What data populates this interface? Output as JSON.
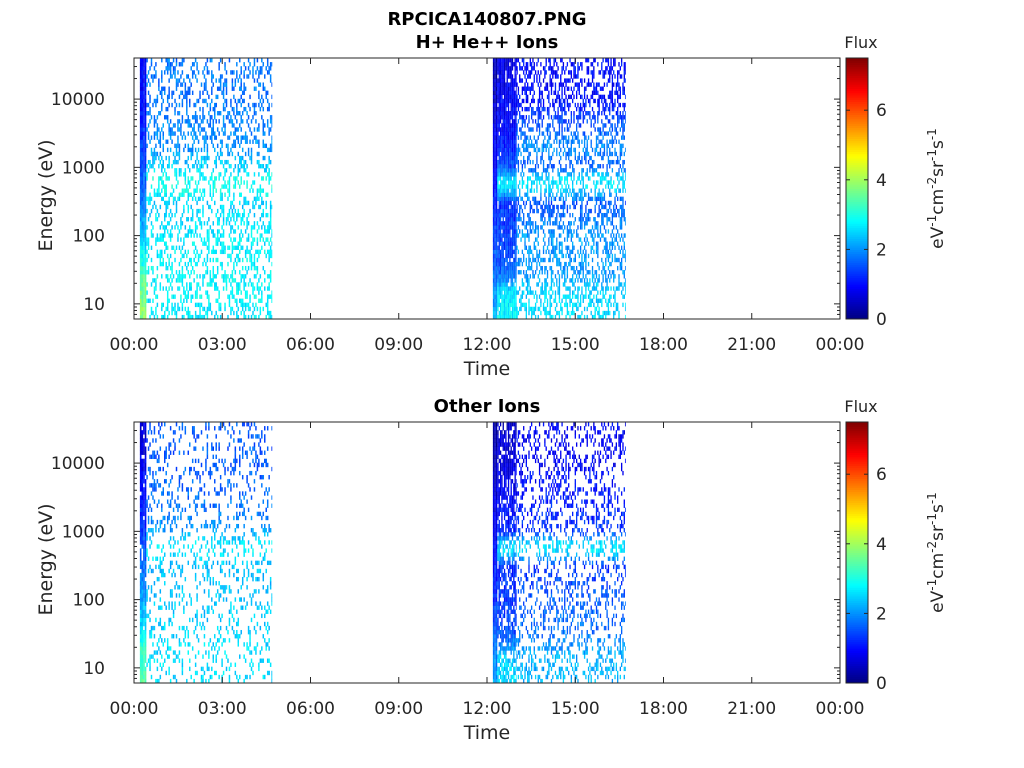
{
  "figure_title": "RPCICA140807.PNG",
  "chart_data": [
    {
      "type": "heatmap",
      "title": "H+ He++ Ions",
      "xlabel": "Time",
      "ylabel": "Energy (eV)",
      "x_ticks": [
        "00:00",
        "03:00",
        "06:00",
        "09:00",
        "12:00",
        "15:00",
        "18:00",
        "21:00",
        "00:00"
      ],
      "x_range_hours": [
        0,
        24
      ],
      "y_scale": "log",
      "y_ticks": [
        10,
        100,
        1000,
        10000
      ],
      "y_tick_labels": [
        "10",
        "100",
        "1000",
        "10000"
      ],
      "y_range": [
        6,
        40000
      ],
      "colorbar": {
        "title": "Flux",
        "label_base": [
          "eV",
          "cm",
          "sr",
          "s"
        ],
        "label_exponents": [
          "-1",
          "-2",
          "-1",
          "-1"
        ],
        "ticks": [
          0,
          2,
          4,
          6
        ],
        "range": [
          0,
          7.5
        ],
        "colormap": "jet"
      },
      "segments": [
        {
          "x_start_hour": 0.2,
          "x_end_hour": 0.42,
          "column_hours": 0.055,
          "profile": [
            [
              6,
              3.9
            ],
            [
              20,
              3.6
            ],
            [
              40,
              3.0
            ],
            [
              100,
              2.4
            ],
            [
              300,
              1.9
            ],
            [
              600,
              1.7
            ],
            [
              1000,
              1.5
            ],
            [
              10000,
              1.0
            ],
            [
              40000,
              0.9
            ]
          ],
          "coverage": 1.0
        },
        {
          "x_start_hour": 0.42,
          "x_end_hour": 4.7,
          "column_hours": 0.05,
          "profile": [
            [
              6,
              2.7
            ],
            [
              15,
              2.8
            ],
            [
              100,
              2.7
            ],
            [
              300,
              2.5
            ],
            [
              500,
              3.0
            ],
            [
              700,
              2.9
            ],
            [
              1000,
              2.5
            ],
            [
              2000,
              2.0
            ],
            [
              10000,
              1.8
            ],
            [
              40000,
              1.8
            ]
          ],
          "coverage": 0.33
        },
        {
          "x_start_hour": 12.2,
          "x_end_hour": 12.35,
          "column_hours": 0.05,
          "profile": [
            [
              6,
              2.3
            ],
            [
              100,
              1.4
            ],
            [
              1000,
              1.0
            ],
            [
              10000,
              0.5
            ],
            [
              40000,
              0.3
            ]
          ],
          "coverage": 1.0
        },
        {
          "x_start_hour": 12.35,
          "x_end_hour": 13.0,
          "column_hours": 0.045,
          "profile": [
            [
              6,
              2.8
            ],
            [
              15,
              2.6
            ],
            [
              30,
              1.6
            ],
            [
              100,
              1.4
            ],
            [
              300,
              1.3
            ],
            [
              500,
              2.6
            ],
            [
              700,
              2.5
            ],
            [
              1000,
              1.5
            ],
            [
              3000,
              1.0
            ],
            [
              10000,
              0.9
            ],
            [
              40000,
              0.7
            ]
          ],
          "coverage": 0.92
        },
        {
          "x_start_hour": 13.0,
          "x_end_hour": 16.7,
          "column_hours": 0.045,
          "profile": [
            [
              6,
              2.6
            ],
            [
              15,
              2.5
            ],
            [
              30,
              2.0
            ],
            [
              100,
              2.1
            ],
            [
              300,
              1.5
            ],
            [
              500,
              2.6
            ],
            [
              700,
              2.6
            ],
            [
              1000,
              1.6
            ],
            [
              2000,
              2.0
            ],
            [
              10000,
              1.0
            ],
            [
              40000,
              1.0
            ]
          ],
          "coverage": 0.42
        }
      ]
    },
    {
      "type": "heatmap",
      "title": "Other Ions",
      "xlabel": "Time",
      "ylabel": "Energy (eV)",
      "x_ticks": [
        "00:00",
        "03:00",
        "06:00",
        "09:00",
        "12:00",
        "15:00",
        "18:00",
        "21:00",
        "00:00"
      ],
      "x_range_hours": [
        0,
        24
      ],
      "y_scale": "log",
      "y_ticks": [
        10,
        100,
        1000,
        10000
      ],
      "y_tick_labels": [
        "10",
        "100",
        "1000",
        "10000"
      ],
      "y_range": [
        6,
        40000
      ],
      "colorbar": {
        "title": "Flux",
        "label_base": [
          "eV",
          "cm",
          "sr",
          "s"
        ],
        "label_exponents": [
          "-1",
          "-2",
          "-1",
          "-1"
        ],
        "ticks": [
          0,
          2,
          4,
          6
        ],
        "range": [
          0,
          7.5
        ],
        "colormap": "jet"
      },
      "segments": [
        {
          "x_start_hour": 0.2,
          "x_end_hour": 0.42,
          "column_hours": 0.055,
          "profile": [
            [
              6,
              3.4
            ],
            [
              20,
              3.2
            ],
            [
              40,
              2.6
            ],
            [
              100,
              2.2
            ],
            [
              300,
              1.7
            ],
            [
              600,
              1.6
            ],
            [
              1000,
              1.3
            ],
            [
              10000,
              0.8
            ],
            [
              40000,
              0.6
            ]
          ],
          "coverage": 0.95
        },
        {
          "x_start_hour": 0.42,
          "x_end_hour": 4.7,
          "column_hours": 0.05,
          "profile": [
            [
              6,
              2.6
            ],
            [
              15,
              2.6
            ],
            [
              100,
              2.4
            ],
            [
              300,
              2.3
            ],
            [
              500,
              2.7
            ],
            [
              700,
              2.6
            ],
            [
              1000,
              2.1
            ],
            [
              2000,
              1.8
            ],
            [
              10000,
              1.6
            ],
            [
              40000,
              1.6
            ]
          ],
          "coverage": 0.2
        },
        {
          "x_start_hour": 12.2,
          "x_end_hour": 12.35,
          "column_hours": 0.05,
          "profile": [
            [
              6,
              2.2
            ],
            [
              100,
              1.3
            ],
            [
              1000,
              0.9
            ],
            [
              10000,
              0.4
            ],
            [
              40000,
              0.2
            ]
          ],
          "coverage": 1.0
        },
        {
          "x_start_hour": 12.35,
          "x_end_hour": 13.0,
          "column_hours": 0.045,
          "profile": [
            [
              6,
              2.6
            ],
            [
              15,
              2.4
            ],
            [
              30,
              1.5
            ],
            [
              100,
              1.3
            ],
            [
              300,
              1.2
            ],
            [
              500,
              2.5
            ],
            [
              700,
              2.4
            ],
            [
              1000,
              1.2
            ],
            [
              3000,
              0.9
            ],
            [
              10000,
              0.7
            ],
            [
              40000,
              0.5
            ]
          ],
          "coverage": 0.7
        },
        {
          "x_start_hour": 13.0,
          "x_end_hour": 16.7,
          "column_hours": 0.045,
          "profile": [
            [
              6,
              2.3
            ],
            [
              15,
              2.2
            ],
            [
              30,
              1.8
            ],
            [
              100,
              1.6
            ],
            [
              300,
              1.3
            ],
            [
              500,
              2.6
            ],
            [
              700,
              2.5
            ],
            [
              1000,
              1.3
            ],
            [
              2000,
              1.2
            ],
            [
              10000,
              0.9
            ],
            [
              40000,
              0.9
            ]
          ],
          "coverage": 0.28
        }
      ]
    }
  ]
}
